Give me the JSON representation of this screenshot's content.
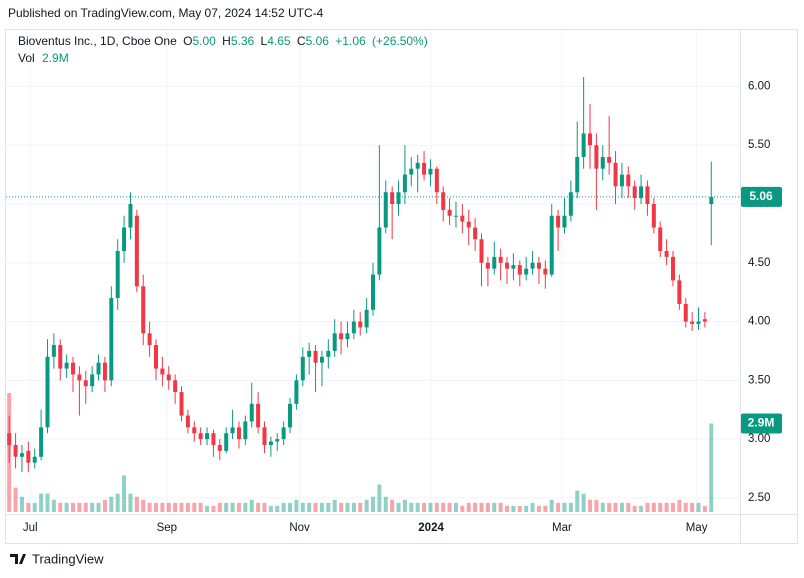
{
  "chart_data": {
    "type": "candlestick",
    "published": "Published on TradingView.com, May 07, 2024 14:52 UTC-4",
    "title": "Bioventus Inc., 1D, Cboe One",
    "ohlc_labels": [
      "O",
      "H",
      "L",
      "C"
    ],
    "change": "+1.06",
    "change_pct": "(+26.50%)",
    "volume_title": "Vol",
    "volume_label": "2.9M",
    "brand": "TradingView",
    "up_color": "#089981",
    "down_color": "#f23645",
    "grid": true,
    "xlim": [
      -0.5,
      114.5
    ],
    "xticks": [
      {
        "value": 3.3,
        "label": "Jul"
      },
      {
        "value": 24.7,
        "label": "Sep"
      },
      {
        "value": 45.5,
        "label": "Nov"
      },
      {
        "value": 66.1,
        "label": "2024"
      },
      {
        "value": 86.6,
        "label": "Mar"
      },
      {
        "value": 107.7,
        "label": "May"
      }
    ],
    "ylim": [
      2.38,
      6.48
    ],
    "yticks": [
      {
        "value": 2.5,
        "label": "2.50"
      },
      {
        "value": 3,
        "label": "3.00"
      },
      {
        "value": 3.5,
        "label": "3.50"
      },
      {
        "value": 4,
        "label": "4.00"
      },
      {
        "value": 4.5,
        "label": "4.50"
      },
      {
        "value": 5,
        "label": "5.00"
      },
      {
        "value": 5.5,
        "label": "5.50"
      },
      {
        "value": 6,
        "label": "6.00"
      }
    ],
    "open": [
      3.05,
      2.95,
      2.85,
      2.9,
      2.8,
      2.85,
      3.1,
      3.7,
      3.8,
      3.6,
      3.65,
      3.55,
      3.5,
      3.45,
      3.55,
      3.65,
      3.5,
      4.2,
      4.6,
      4.8,
      4.9,
      4.3,
      3.9,
      3.8,
      3.6,
      3.55,
      3.5,
      3.4,
      3.2,
      3.1,
      3.05,
      3.0,
      3.05,
      2.95,
      2.9,
      3.05,
      3.1,
      3.0,
      3.15,
      3.3,
      3.1,
      2.95,
      2.98,
      3.0,
      3.1,
      3.3,
      3.5,
      3.7,
      3.75,
      3.65,
      3.7,
      3.75,
      3.9,
      3.85,
      3.9,
      4.0,
      3.95,
      4.1,
      4.4,
      4.8,
      5.1,
      5.0,
      5.1,
      5.25,
      5.3,
      5.35,
      5.25,
      5.3,
      5.1,
      4.95,
      4.9,
      4.9,
      4.85,
      4.8,
      4.7,
      4.5,
      4.45,
      4.55,
      4.5,
      4.45,
      4.48,
      4.4,
      4.45,
      4.5,
      4.45,
      4.4,
      4.9,
      4.8,
      4.9,
      5.1,
      5.4,
      5.6,
      5.5,
      5.3,
      5.4,
      5.35,
      5.15,
      5.25,
      5.15,
      5.05,
      5.15,
      5.0,
      4.8,
      4.6,
      4.55,
      4.35,
      4.15,
      4.0,
      3.98,
      4.02,
      5.0
    ],
    "high": [
      3.2,
      3.05,
      2.95,
      2.98,
      2.92,
      3.25,
      3.85,
      3.9,
      3.85,
      3.72,
      3.7,
      3.62,
      3.58,
      3.62,
      3.72,
      3.7,
      4.3,
      4.7,
      4.9,
      5.1,
      4.95,
      4.4,
      4.0,
      3.85,
      3.7,
      3.62,
      3.55,
      3.45,
      3.25,
      3.15,
      3.1,
      3.1,
      3.08,
      3.0,
      3.1,
      3.25,
      3.15,
      3.2,
      3.48,
      3.4,
      3.15,
      3.02,
      3.05,
      3.15,
      3.35,
      3.55,
      3.78,
      3.82,
      3.8,
      3.75,
      3.85,
      4.02,
      4.0,
      4.0,
      4.1,
      4.08,
      4.2,
      4.5,
      5.5,
      5.2,
      5.15,
      5.2,
      5.5,
      5.4,
      5.42,
      5.45,
      5.38,
      5.32,
      5.15,
      5.05,
      5.02,
      5.0,
      4.95,
      4.88,
      4.75,
      4.55,
      4.68,
      4.62,
      4.55,
      4.58,
      4.52,
      4.55,
      4.6,
      4.55,
      4.52,
      5.0,
      4.95,
      5.05,
      5.2,
      5.7,
      6.08,
      5.85,
      5.6,
      5.5,
      5.75,
      5.45,
      5.35,
      5.32,
      5.2,
      5.25,
      5.2,
      5.05,
      4.85,
      4.7,
      4.6,
      4.4,
      4.2,
      4.08,
      4.12,
      4.08,
      5.36
    ],
    "low": [
      2.8,
      2.75,
      2.72,
      2.72,
      2.75,
      2.82,
      3.05,
      3.6,
      3.5,
      3.52,
      3.4,
      3.2,
      3.3,
      3.4,
      3.5,
      3.4,
      3.45,
      4.1,
      4.5,
      4.7,
      4.25,
      3.8,
      3.7,
      3.5,
      3.45,
      3.42,
      3.3,
      3.15,
      3.05,
      2.98,
      2.95,
      2.95,
      2.85,
      2.82,
      2.88,
      3.0,
      2.92,
      2.95,
      3.1,
      3.05,
      2.88,
      2.85,
      2.9,
      2.95,
      3.05,
      3.25,
      3.45,
      3.55,
      3.4,
      3.45,
      3.6,
      3.7,
      3.72,
      3.78,
      3.85,
      3.88,
      3.9,
      4.05,
      4.35,
      4.75,
      4.7,
      4.9,
      5.0,
      5.15,
      5.1,
      5.2,
      5.15,
      5.0,
      4.85,
      4.82,
      4.8,
      4.75,
      4.65,
      4.6,
      4.3,
      4.3,
      4.4,
      4.35,
      4.32,
      4.35,
      4.3,
      4.35,
      4.4,
      4.32,
      4.28,
      4.38,
      4.6,
      4.75,
      4.85,
      5.05,
      5.3,
      5.3,
      4.95,
      5.2,
      5.25,
      5.0,
      5.05,
      5.05,
      4.95,
      5.0,
      4.9,
      4.75,
      4.55,
      4.48,
      4.3,
      4.1,
      3.95,
      3.92,
      3.93,
      3.95,
      4.65
    ],
    "close": [
      2.95,
      2.85,
      2.88,
      2.8,
      2.85,
      3.1,
      3.7,
      3.8,
      3.6,
      3.65,
      3.55,
      3.5,
      3.45,
      3.55,
      3.65,
      3.5,
      4.2,
      4.6,
      4.8,
      5.0,
      4.3,
      3.9,
      3.8,
      3.6,
      3.55,
      3.5,
      3.4,
      3.2,
      3.1,
      3.05,
      3.0,
      3.05,
      2.95,
      2.9,
      3.05,
      3.1,
      3.0,
      3.15,
      3.3,
      3.1,
      2.95,
      2.98,
      3.0,
      3.1,
      3.3,
      3.5,
      3.7,
      3.75,
      3.65,
      3.7,
      3.75,
      3.9,
      3.85,
      3.9,
      4.0,
      3.95,
      4.1,
      4.4,
      4.8,
      5.1,
      5.0,
      5.1,
      5.25,
      5.3,
      5.35,
      5.25,
      5.3,
      5.1,
      4.95,
      4.9,
      4.9,
      4.85,
      4.8,
      4.7,
      4.5,
      4.45,
      4.55,
      4.5,
      4.45,
      4.48,
      4.4,
      4.45,
      4.5,
      4.45,
      4.4,
      4.9,
      4.8,
      4.9,
      5.1,
      5.4,
      5.6,
      5.5,
      5.3,
      5.4,
      5.35,
      5.15,
      5.25,
      5.15,
      5.05,
      5.15,
      5.0,
      4.8,
      4.6,
      4.55,
      4.35,
      4.15,
      4.0,
      3.98,
      4.0,
      4.0,
      5.06
    ],
    "volume": [
      3.9,
      0.8,
      0.5,
      0.3,
      0.3,
      0.6,
      0.6,
      0.4,
      0.3,
      0.3,
      0.3,
      0.3,
      0.3,
      0.3,
      0.3,
      0.4,
      0.5,
      0.6,
      1.2,
      0.6,
      0.5,
      0.4,
      0.3,
      0.3,
      0.3,
      0.3,
      0.3,
      0.3,
      0.3,
      0.3,
      0.3,
      0.2,
      0.2,
      0.3,
      0.3,
      0.3,
      0.3,
      0.3,
      0.4,
      0.3,
      0.3,
      0.2,
      0.2,
      0.3,
      0.3,
      0.4,
      0.3,
      0.3,
      0.3,
      0.3,
      0.3,
      0.4,
      0.3,
      0.3,
      0.3,
      0.3,
      0.4,
      0.5,
      0.9,
      0.5,
      0.4,
      0.3,
      0.4,
      0.3,
      0.3,
      0.3,
      0.3,
      0.3,
      0.3,
      0.3,
      0.3,
      0.2,
      0.3,
      0.3,
      0.3,
      0.3,
      0.3,
      0.3,
      0.2,
      0.2,
      0.2,
      0.2,
      0.3,
      0.2,
      0.2,
      0.4,
      0.3,
      0.3,
      0.3,
      0.7,
      0.6,
      0.4,
      0.4,
      0.3,
      0.3,
      0.3,
      0.3,
      0.3,
      0.2,
      0.2,
      0.3,
      0.3,
      0.3,
      0.3,
      0.3,
      0.4,
      0.3,
      0.3,
      0.3,
      0.2,
      2.9
    ]
  }
}
